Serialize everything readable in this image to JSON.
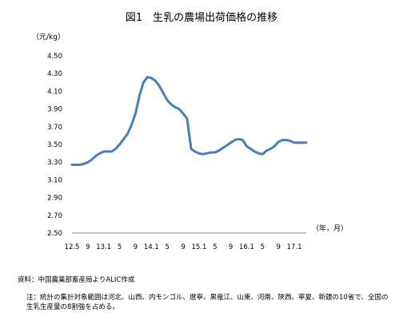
{
  "chart_data": {
    "type": "line",
    "title": "図1　生乳の農場出荷価格の推移",
    "y_unit_label": "（元/kg）",
    "x_unit_label": "（年，月）",
    "ylim": [
      2.5,
      4.5
    ],
    "y_ticks": [
      "4.50",
      "4.30",
      "4.10",
      "3.90",
      "3.70",
      "3.50",
      "3.30",
      "3.10",
      "2.90",
      "2.70",
      "2.50"
    ],
    "x_tick_labels": [
      "12.5",
      "9",
      "13.1",
      "5",
      "9",
      "14.1",
      "5",
      "9",
      "15.1",
      "5",
      "9",
      "16.1",
      "5",
      "9",
      "17.1"
    ],
    "x_tick_index": [
      0,
      4,
      8,
      12,
      16,
      20,
      24,
      28,
      32,
      36,
      40,
      44,
      48,
      52,
      56
    ],
    "grid": false,
    "color": "#4a7ebb",
    "x": [
      "12.5",
      "12.6",
      "12.7",
      "12.8",
      "12.9",
      "12.10",
      "12.11",
      "12.12",
      "13.1",
      "13.2",
      "13.3",
      "13.4",
      "13.5",
      "13.6",
      "13.7",
      "13.8",
      "13.9",
      "13.10",
      "13.11",
      "13.12",
      "14.1",
      "14.2",
      "14.3",
      "14.4",
      "14.5",
      "14.6",
      "14.7",
      "14.8",
      "14.9",
      "14.10",
      "14.11",
      "14.12",
      "15.1",
      "15.2",
      "15.3",
      "15.4",
      "15.5",
      "15.6",
      "15.7",
      "15.8",
      "15.9",
      "15.10",
      "15.11",
      "15.12",
      "16.1",
      "16.2",
      "16.3",
      "16.4",
      "16.5",
      "16.6",
      "16.7",
      "16.8",
      "16.9",
      "16.10",
      "16.11",
      "16.12",
      "17.1",
      "17.2",
      "17.3",
      "17.4"
    ],
    "values": [
      3.27,
      3.27,
      3.27,
      3.28,
      3.3,
      3.33,
      3.37,
      3.4,
      3.42,
      3.42,
      3.42,
      3.45,
      3.5,
      3.56,
      3.62,
      3.72,
      3.85,
      4.05,
      4.2,
      4.26,
      4.25,
      4.22,
      4.16,
      4.08,
      4.0,
      3.95,
      3.92,
      3.9,
      3.85,
      3.79,
      3.45,
      3.42,
      3.4,
      3.39,
      3.4,
      3.41,
      3.41,
      3.43,
      3.46,
      3.49,
      3.52,
      3.55,
      3.56,
      3.55,
      3.48,
      3.45,
      3.42,
      3.4,
      3.39,
      3.43,
      3.45,
      3.48,
      3.53,
      3.55,
      3.55,
      3.54,
      3.52,
      3.52,
      3.52,
      3.52
    ]
  },
  "source_text": "資料：中国農業部畜産局よりALIC作成",
  "note_text": "注：統計の集計対象範囲は河北、山西、内モンゴル、遼寧、黒竜江、山東、河南、陝西、寧夏、新疆の10省で、全国の生乳生産量の8割強を占める。"
}
